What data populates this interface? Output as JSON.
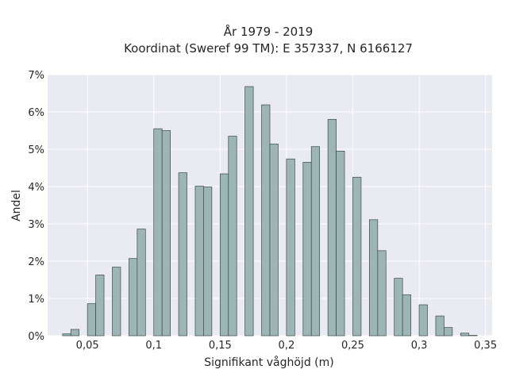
{
  "chart_data": {
    "type": "bar",
    "title": "År 1979 - 2019",
    "subtitle": "Koordinat (Sweref 99 TM): E 357337, N 6166127",
    "xlabel": "Signifikant våghöjd (m)",
    "ylabel": "Andel",
    "xlim": [
      0.02,
      0.355
    ],
    "ylim": [
      0,
      7
    ],
    "xticks": [
      0.05,
      0.1,
      0.15,
      0.2,
      0.25,
      0.3,
      0.35
    ],
    "xtick_labels": [
      "0,05",
      "0,1",
      "0,15",
      "0,2",
      "0,25",
      "0,3",
      "0,35"
    ],
    "yticks": [
      0,
      1,
      2,
      3,
      4,
      5,
      6,
      7
    ],
    "ytick_labels": [
      "0%",
      "1%",
      "2%",
      "3%",
      "4%",
      "5%",
      "6%",
      "7%"
    ],
    "bin_width": 0.00625,
    "bars": [
      {
        "x": 0.03125,
        "value": 0.05
      },
      {
        "x": 0.0375,
        "value": 0.17
      },
      {
        "x": 0.05,
        "value": 0.86
      },
      {
        "x": 0.05625,
        "value": 1.63
      },
      {
        "x": 0.06875,
        "value": 1.84
      },
      {
        "x": 0.08125,
        "value": 2.07
      },
      {
        "x": 0.0875,
        "value": 2.86
      },
      {
        "x": 0.1,
        "value": 5.55
      },
      {
        "x": 0.10625,
        "value": 5.5
      },
      {
        "x": 0.11875,
        "value": 4.37
      },
      {
        "x": 0.13125,
        "value": 4.01
      },
      {
        "x": 0.1375,
        "value": 3.99
      },
      {
        "x": 0.15,
        "value": 4.34
      },
      {
        "x": 0.15625,
        "value": 5.35
      },
      {
        "x": 0.16875,
        "value": 6.68
      },
      {
        "x": 0.18125,
        "value": 6.19
      },
      {
        "x": 0.1875,
        "value": 5.14
      },
      {
        "x": 0.2,
        "value": 4.74
      },
      {
        "x": 0.2125,
        "value": 4.65
      },
      {
        "x": 0.21875,
        "value": 5.07
      },
      {
        "x": 0.23125,
        "value": 5.8
      },
      {
        "x": 0.2375,
        "value": 4.95
      },
      {
        "x": 0.25,
        "value": 4.25
      },
      {
        "x": 0.2625,
        "value": 3.11
      },
      {
        "x": 0.26875,
        "value": 2.28
      },
      {
        "x": 0.28125,
        "value": 1.54
      },
      {
        "x": 0.2875,
        "value": 1.1
      },
      {
        "x": 0.3,
        "value": 0.83
      },
      {
        "x": 0.3125,
        "value": 0.53
      },
      {
        "x": 0.31875,
        "value": 0.22
      },
      {
        "x": 0.33125,
        "value": 0.07
      },
      {
        "x": 0.3375,
        "value": 0.01
      }
    ],
    "grid": true,
    "colors": {
      "bar_fill": "#9db5b5",
      "bar_edge": "#3b4a4a",
      "plot_background": "#eaeaf2",
      "grid": "#ffffff"
    }
  }
}
